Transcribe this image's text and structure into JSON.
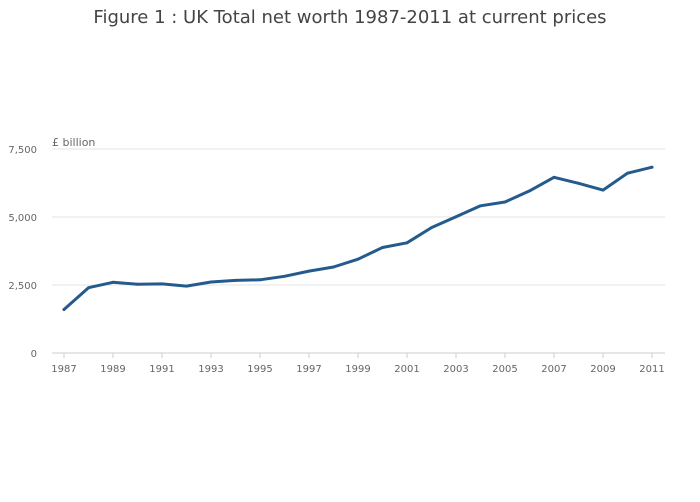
{
  "chart_data": {
    "type": "line",
    "title": "Figure 1 : UK Total net worth 1987-2011 at current prices",
    "xlabel": "",
    "ylabel": "£ billion",
    "ylim": [
      0,
      8000
    ],
    "yticks": [
      0,
      2500,
      5000,
      7500
    ],
    "ytick_labels": [
      "0",
      "2,500",
      "5,000",
      "7,500"
    ],
    "xticks": [
      1987,
      1989,
      1991,
      1993,
      1995,
      1997,
      1999,
      2001,
      2003,
      2005,
      2007,
      2009,
      2011
    ],
    "xtick_labels": [
      "1987",
      "1989",
      "1991",
      "1993",
      "1995",
      "1997",
      "1999",
      "2001",
      "2003",
      "2005",
      "2007",
      "2009",
      "2011"
    ],
    "grid": true,
    "legend": "none",
    "x": [
      1987,
      1988,
      1989,
      1990,
      1991,
      1992,
      1993,
      1994,
      1995,
      1996,
      1997,
      1998,
      1999,
      2000,
      2001,
      2002,
      2003,
      2004,
      2005,
      2006,
      2007,
      2008,
      2009,
      2010,
      2011
    ],
    "series": [
      {
        "name": "Total net worth",
        "color": "#245a8c",
        "values": [
          1600,
          2400,
          2600,
          2530,
          2540,
          2460,
          2610,
          2670,
          2690,
          2820,
          3010,
          3160,
          3450,
          3880,
          4050,
          4610,
          5010,
          5410,
          5550,
          5960,
          6460,
          6240,
          5990,
          6610,
          6830
        ]
      }
    ]
  }
}
